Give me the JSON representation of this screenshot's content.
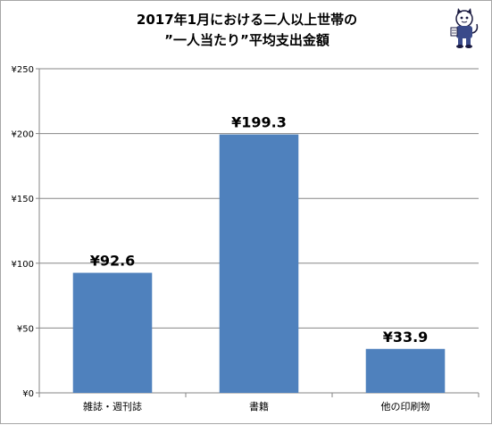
{
  "title": {
    "line1": "2017年1月における二人以上世帯の",
    "line2": "”一人当たり”平均支出金額"
  },
  "colors": {
    "bar": "#4f81bd",
    "axis": "#868686",
    "grid": "#868686",
    "border": "#a6a6a6"
  },
  "mascot_icon": "cat-mascot-icon",
  "chart_data": {
    "type": "bar",
    "title": "2017年1月における二人以上世帯の ”一人当たり”平均支出金額",
    "categories": [
      "雑誌・週刊誌",
      "書籍",
      "他の印刷物"
    ],
    "values": [
      92.6,
      199.3,
      33.9
    ],
    "data_labels": [
      "¥92.6",
      "¥199.3",
      "¥33.9"
    ],
    "xlabel": "",
    "ylabel": "",
    "ylim": [
      0,
      250
    ],
    "yticks": [
      0,
      50,
      100,
      150,
      200,
      250
    ],
    "ytick_labels": [
      "¥0",
      "¥50",
      "¥100",
      "¥150",
      "¥200",
      "¥250"
    ],
    "grid": true,
    "legend": "none"
  }
}
